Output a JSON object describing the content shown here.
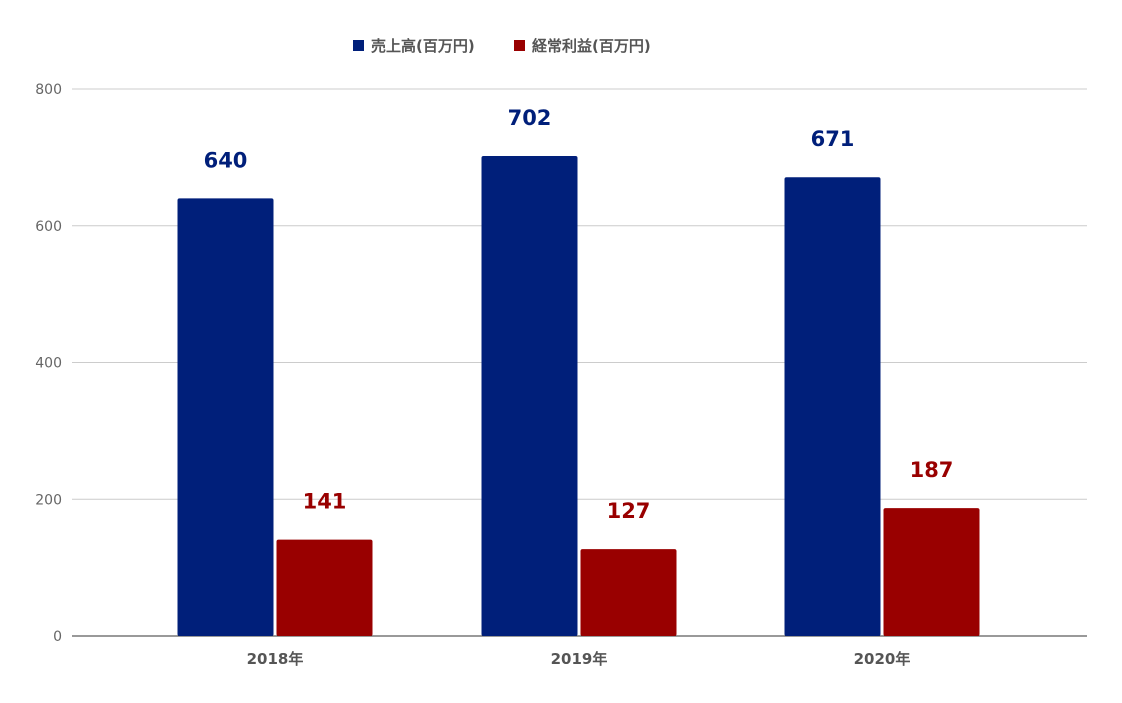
{
  "chart_data": {
    "type": "bar",
    "categories": [
      "2018年",
      "2019年",
      "2020年"
    ],
    "series": [
      {
        "name": "売上高(百万円)",
        "values": [
          640,
          702,
          671
        ],
        "color": "#001f7a"
      },
      {
        "name": "経常利益(百万円)",
        "values": [
          141,
          127,
          187
        ],
        "color": "#990000"
      }
    ],
    "yticks": [
      "0",
      "200",
      "400",
      "600",
      "800"
    ],
    "ylim": [
      0,
      800
    ],
    "grid": true,
    "legend_position": "top-center",
    "data_labels": true
  }
}
